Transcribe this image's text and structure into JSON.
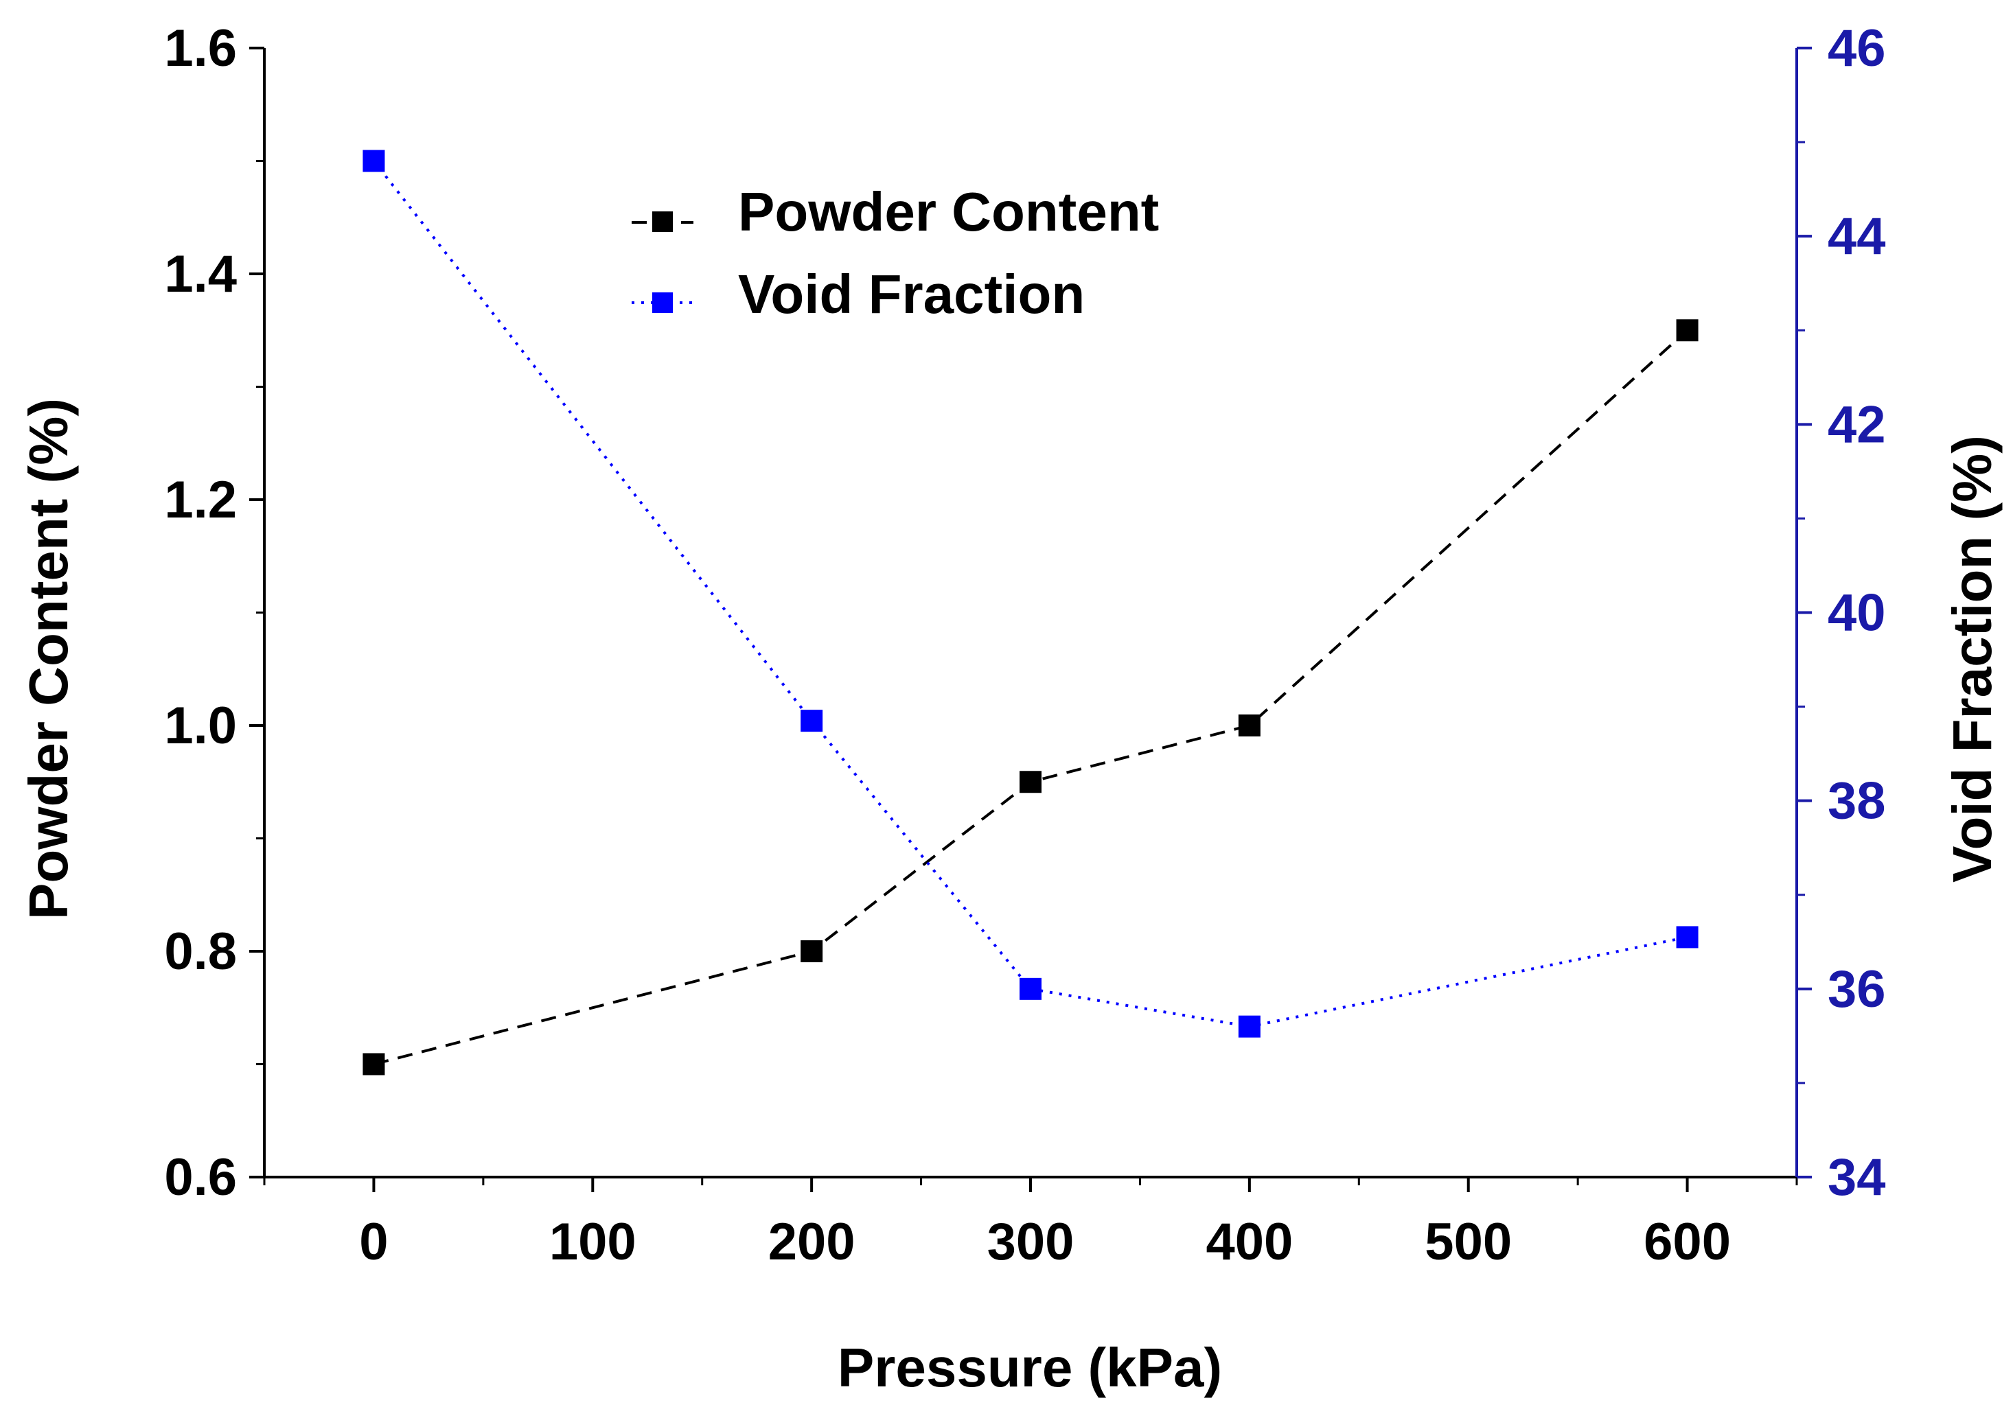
{
  "chart_data": {
    "type": "line",
    "title": "",
    "xlabel": "Pressure (kPa)",
    "ylabel": "Powder Content (%)",
    "y2label": "Void Fraction (%)",
    "xlim": [
      -50,
      650
    ],
    "ylim": [
      0.6,
      1.6
    ],
    "y2lim": [
      34,
      46
    ],
    "xticks": [
      0,
      100,
      200,
      300,
      400,
      500,
      600
    ],
    "xtick_labels": [
      "0",
      "100",
      "200",
      "300",
      "400",
      "500",
      "600"
    ],
    "yticks": [
      0.6,
      0.8,
      1.0,
      1.2,
      1.4,
      1.6
    ],
    "ytick_labels": [
      "0.6",
      "0.8",
      "1.0",
      "1.2",
      "1.4",
      "1.6"
    ],
    "y2ticks": [
      34,
      36,
      38,
      40,
      42,
      44,
      46
    ],
    "y2tick_labels": [
      "34",
      "36",
      "38",
      "40",
      "42",
      "44",
      "46"
    ],
    "legend_position": "top-center",
    "series": [
      {
        "name": "Powder Content",
        "axis": "left",
        "color": "#000000",
        "line_style": "dashed",
        "marker": "square",
        "x": [
          0,
          200,
          300,
          400,
          600
        ],
        "values": [
          0.7,
          0.8,
          0.95,
          1.0,
          1.35
        ]
      },
      {
        "name": "Void Fraction",
        "axis": "right",
        "color": "#0000ff",
        "line_style": "dotted",
        "marker": "square",
        "x": [
          0,
          200,
          300,
          400,
          600
        ],
        "values": [
          44.8,
          38.85,
          36.0,
          35.6,
          36.55
        ]
      }
    ],
    "axis_colors": {
      "left": "#000000",
      "right": "#1a1aa8"
    }
  }
}
